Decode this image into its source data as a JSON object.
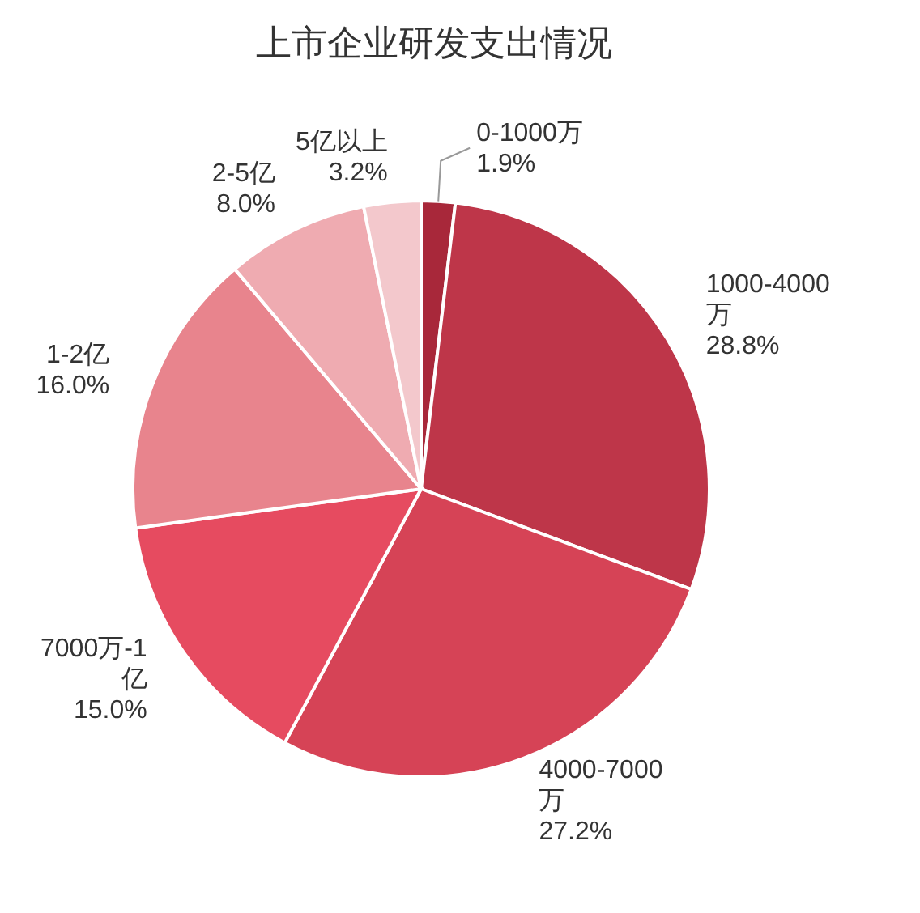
{
  "chart_data": {
    "type": "pie",
    "title": "上市企业研发支出情况",
    "categories": [
      "0-1000万",
      "1000-4000万",
      "4000-7000万",
      "7000万-1亿",
      "1-2亿",
      "2-5亿",
      "5亿以上"
    ],
    "values": [
      1.9,
      28.8,
      27.2,
      15.0,
      16.0,
      8.0,
      3.2
    ],
    "value_labels": [
      "1.9%",
      "28.8%",
      "27.2%",
      "15.0%",
      "16.0%",
      "8.0%",
      "3.2%"
    ],
    "colors": [
      "#a8283a",
      "#be3649",
      "#d64356",
      "#e64b60",
      "#e8848d",
      "#efabb1",
      "#f3c8cc"
    ]
  }
}
